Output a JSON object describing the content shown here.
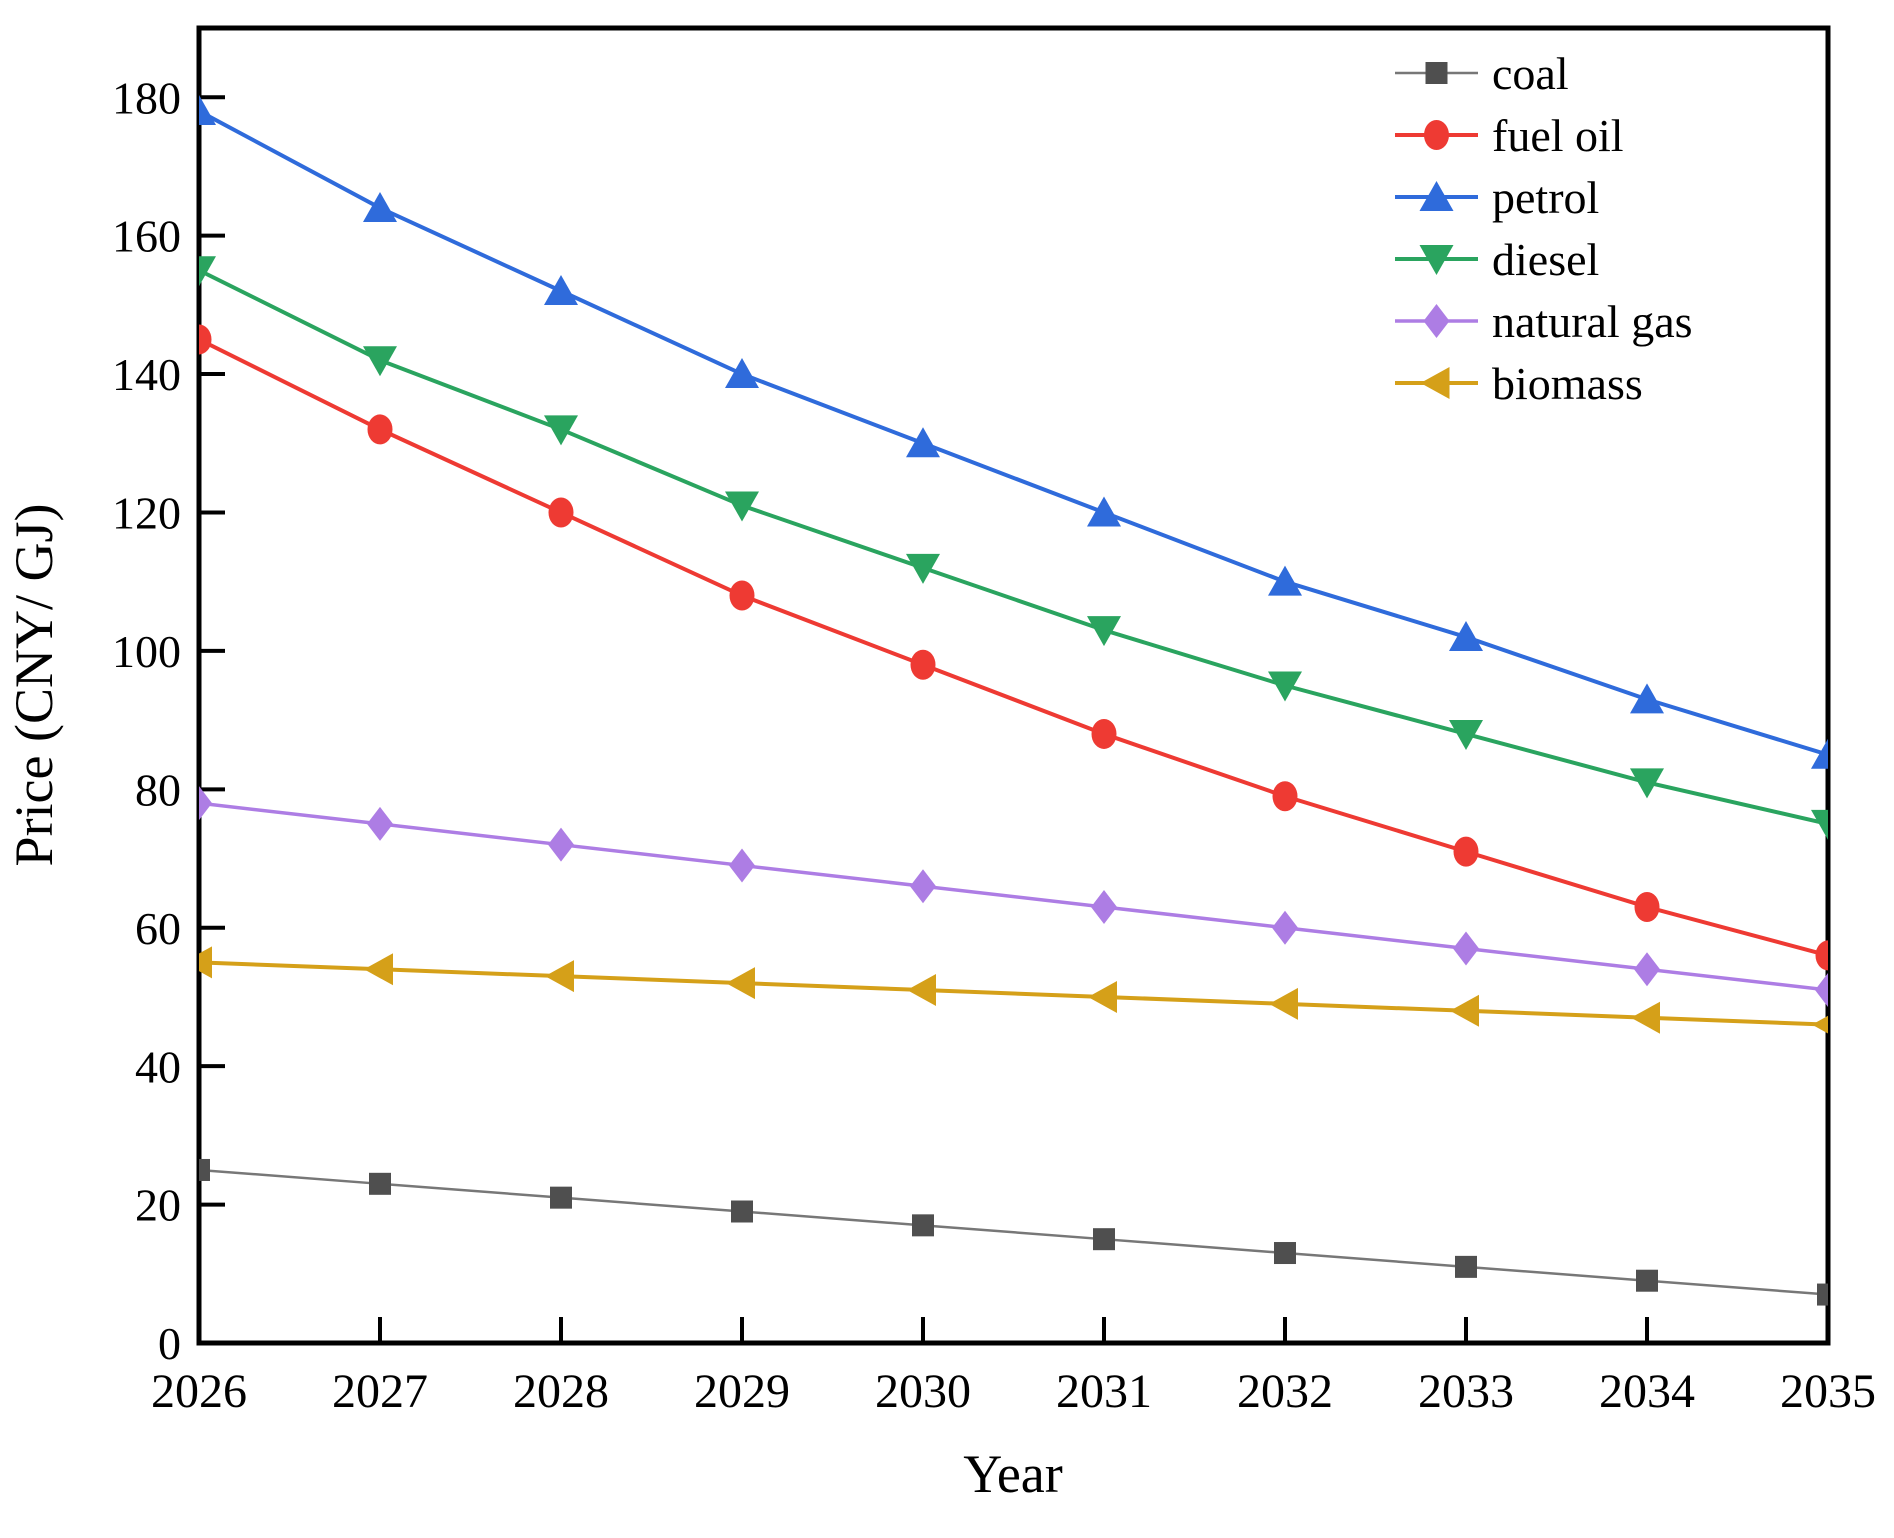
{
  "figure": {
    "background": "#ffffff",
    "axis_color": "#000000"
  },
  "chart_data": {
    "type": "line",
    "title": "",
    "xlabel": "Year",
    "ylabel": "Price (CNY/ GJ)",
    "x": [
      2026,
      2027,
      2028,
      2029,
      2030,
      2031,
      2032,
      2033,
      2034,
      2035
    ],
    "xlim": [
      2026,
      2035
    ],
    "ylim": [
      0,
      190
    ],
    "yticks": [
      0,
      20,
      40,
      60,
      80,
      100,
      120,
      140,
      160,
      180
    ],
    "grid": false,
    "legend_position": "top-right-inside",
    "series": [
      {
        "name": "coal",
        "color": "#4f4f4f",
        "line_color": "#777777",
        "line_width": 2.5,
        "marker": "square",
        "values": [
          25,
          23,
          21,
          19,
          17,
          15,
          13,
          11,
          9,
          7
        ]
      },
      {
        "name": "fuel oil",
        "color": "#ee3a33",
        "line_color": "#ee3a33",
        "line_width": 4,
        "marker": "circle",
        "values": [
          145,
          132,
          120,
          108,
          98,
          88,
          79,
          71,
          63,
          56
        ]
      },
      {
        "name": "petrol",
        "color": "#2f6bdb",
        "line_color": "#2f6bdb",
        "line_width": 4,
        "marker": "triangle-up",
        "values": [
          178,
          164,
          152,
          140,
          130,
          120,
          110,
          102,
          93,
          85
        ]
      },
      {
        "name": "diesel",
        "color": "#2aa45f",
        "line_color": "#2aa45f",
        "line_width": 4,
        "marker": "triangle-down",
        "values": [
          155,
          142,
          132,
          121,
          112,
          103,
          95,
          88,
          81,
          75
        ]
      },
      {
        "name": "natural gas",
        "color": "#ad7de4",
        "line_color": "#ad7de4",
        "line_width": 3.5,
        "marker": "diamond",
        "values": [
          78,
          75,
          72,
          69,
          66,
          63,
          60,
          57,
          54,
          51
        ]
      },
      {
        "name": "biomass",
        "color": "#d5a019",
        "line_color": "#d5a019",
        "line_width": 4,
        "marker": "triangle-left",
        "values": [
          55,
          54,
          53,
          52,
          51,
          50,
          49,
          48,
          47,
          46
        ]
      }
    ]
  }
}
